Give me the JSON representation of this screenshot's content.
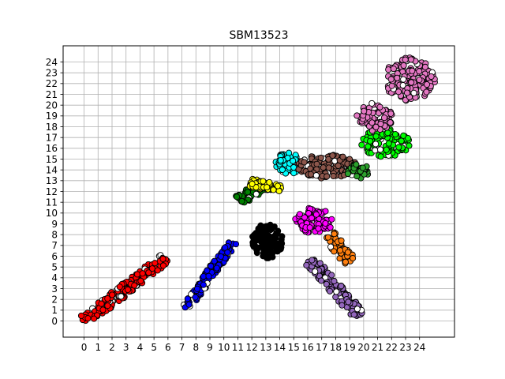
{
  "chart_data": {
    "type": "scatter",
    "title": "SBM13523",
    "xlabel": "",
    "ylabel": "",
    "xlim": [
      -1.5,
      26.5
    ],
    "ylim": [
      -1.5,
      25.5
    ],
    "xticks": [
      0,
      1,
      2,
      3,
      4,
      5,
      6,
      7,
      8,
      9,
      10,
      11,
      12,
      13,
      14,
      15,
      16,
      17,
      18,
      19,
      20,
      21,
      22,
      23,
      24
    ],
    "yticks": [
      0,
      1,
      2,
      3,
      4,
      5,
      6,
      7,
      8,
      9,
      10,
      11,
      12,
      13,
      14,
      15,
      16,
      17,
      18,
      19,
      20,
      21,
      22,
      23,
      24
    ],
    "grid": true,
    "legend": "none",
    "marker_edge_color": "#000000",
    "clusters": [
      {
        "color": "#ff0000",
        "shape": "band",
        "start": [
          0.0,
          0.0
        ],
        "end": [
          5.8,
          5.8
        ],
        "halfwidth": 0.5,
        "count": 160
      },
      {
        "color": "#0000ff",
        "shape": "band",
        "start": [
          7.3,
          1.2
        ],
        "end": [
          10.6,
          7.3
        ],
        "halfwidth": 0.35,
        "count": 110
      },
      {
        "color": "#000000",
        "shape": "blob",
        "center": [
          13.1,
          7.4
        ],
        "radius": [
          1.1,
          1.6
        ],
        "count": 130
      },
      {
        "color": "#008000",
        "shape": "band",
        "start": [
          11.1,
          11.2
        ],
        "end": [
          12.8,
          12.6
        ],
        "halfwidth": 0.5,
        "count": 60
      },
      {
        "color": "#ffff00",
        "shape": "band",
        "start": [
          11.9,
          12.8
        ],
        "end": [
          14.1,
          12.3
        ],
        "halfwidth": 0.4,
        "count": 50
      },
      {
        "color": "#00ffff",
        "shape": "blob",
        "center": [
          14.6,
          14.6
        ],
        "radius": [
          0.9,
          1.0
        ],
        "count": 60
      },
      {
        "color": "#8c564b",
        "shape": "blob",
        "center": [
          17.4,
          14.3
        ],
        "radius": [
          2.2,
          1.1
        ],
        "count": 130
      },
      {
        "color": "#2ca02c",
        "shape": "blob",
        "center": [
          19.6,
          13.9
        ],
        "radius": [
          0.8,
          0.8
        ],
        "count": 30
      },
      {
        "color": "#00ff00",
        "shape": "blob",
        "center": [
          21.5,
          16.5
        ],
        "radius": [
          1.8,
          1.3
        ],
        "count": 90
      },
      {
        "color": "#ff00ff",
        "shape": "blob",
        "center": [
          16.5,
          9.3
        ],
        "radius": [
          1.4,
          1.2
        ],
        "count": 80
      },
      {
        "color": "#ff7f0e",
        "shape": "band",
        "start": [
          17.5,
          8.0
        ],
        "end": [
          19.0,
          5.5
        ],
        "halfwidth": 0.5,
        "count": 60
      },
      {
        "color": "#9467bd",
        "shape": "band",
        "start": [
          16.2,
          5.6
        ],
        "end": [
          19.7,
          0.5
        ],
        "halfwidth": 0.5,
        "count": 120
      },
      {
        "color": "#e377c2",
        "shape": "blob",
        "center": [
          20.8,
          18.9
        ],
        "radius": [
          1.3,
          1.3
        ],
        "count": 70
      },
      {
        "color": "#e377c2",
        "shape": "blob",
        "center": [
          23.3,
          22.4
        ],
        "radius": [
          1.8,
          2.0
        ],
        "count": 150
      }
    ]
  }
}
